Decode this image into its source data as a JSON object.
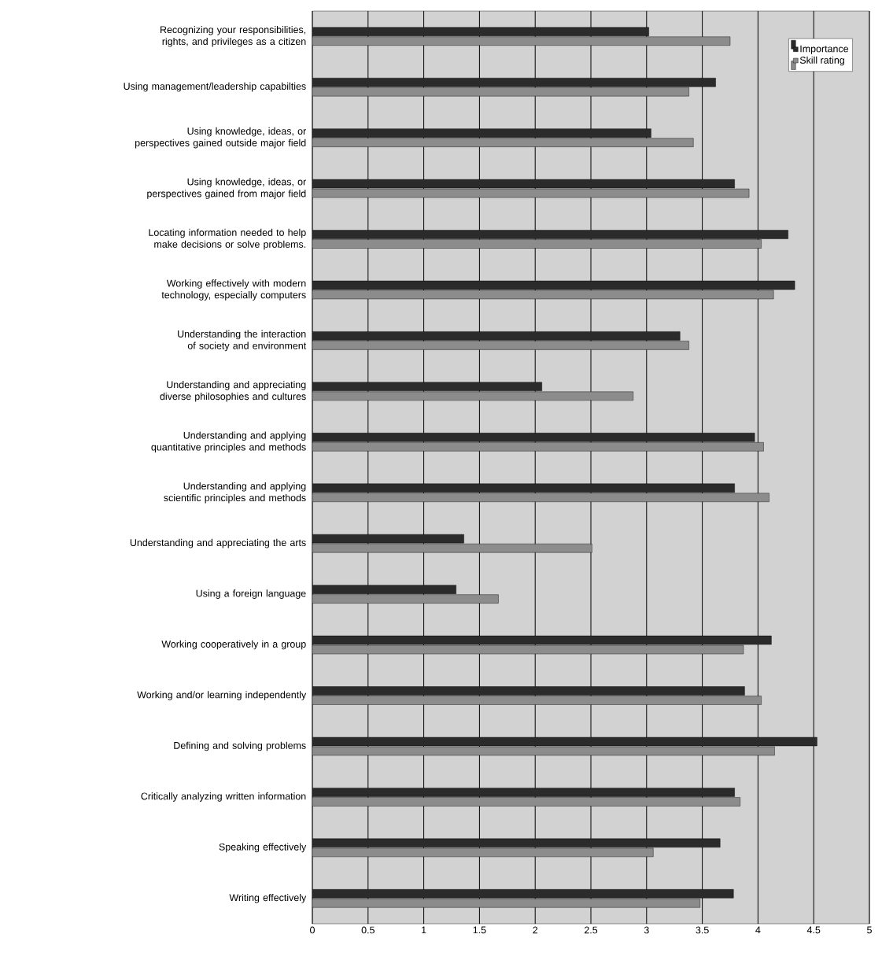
{
  "chart_data": {
    "type": "bar",
    "orientation": "horizontal",
    "categories": [
      "Recognizing your responsibilities, rights, and privileges as a citizen",
      "Using management/leadership capabilties",
      "Using knowledge, ideas, or perspectives gained outside major field",
      "Using knowledge, ideas, or perspectives gained from major field",
      "Locating information needed to help make decisions or solve problems.",
      "Working effectively with modern technology, especially computers",
      "Understanding the interaction of society and environment",
      "Understanding and appreciating diverse philosophies and cultures",
      "Understanding and applying quantitative principles and methods",
      "Understanding and applying scientific principles and methods",
      "Understanding and appreciating the arts",
      "Using a foreign language",
      "Working cooperatively in a group",
      "Working and/or learning independently",
      "Defining and solving problems",
      "Critically analyzing written information",
      "Speaking effectively",
      "Writing effectively"
    ],
    "series": [
      {
        "name": "Importance",
        "color": "#2b2b2b",
        "values": [
          3.02,
          3.62,
          3.04,
          3.79,
          4.27,
          4.33,
          3.3,
          2.06,
          3.97,
          3.79,
          1.36,
          1.29,
          4.12,
          3.88,
          4.53,
          3.79,
          3.66,
          3.78
        ]
      },
      {
        "name": "Skill rating",
        "color": "#8c8c8c",
        "values": [
          3.75,
          3.38,
          3.42,
          3.92,
          4.03,
          4.14,
          3.38,
          2.88,
          4.05,
          4.1,
          2.51,
          1.67,
          3.87,
          4.03,
          4.15,
          3.84,
          3.06,
          3.48
        ]
      }
    ],
    "xlim": [
      0,
      5
    ],
    "xticks": [
      0,
      0.5,
      1,
      1.5,
      2,
      2.5,
      3,
      3.5,
      4,
      4.5,
      5
    ],
    "grid": "x",
    "legend": "top right"
  }
}
